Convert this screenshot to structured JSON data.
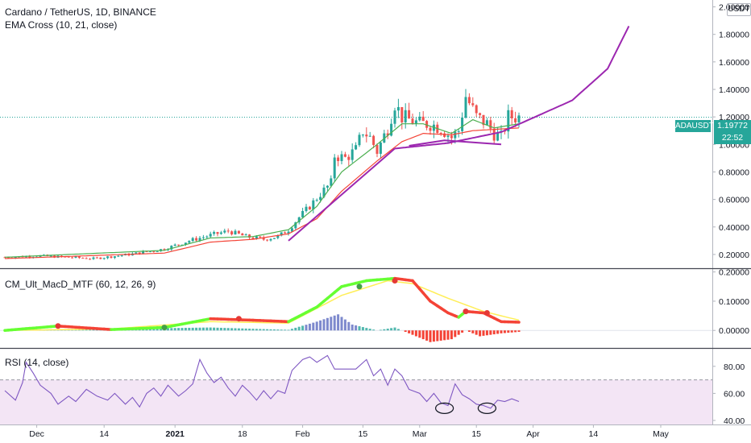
{
  "header": {
    "title": "Cardano / TetherUS, 1D, BINANCE",
    "ema_label": "EMA Cross (10, 21, close)",
    "currency_badge": "USDT"
  },
  "price_tag": {
    "symbol": "ADAUSDT",
    "price": "1.19772",
    "countdown": "22:52"
  },
  "macd_panel": {
    "label": "CM_Ult_MacD_MTF (60, 12, 26, 9)"
  },
  "rsi_panel": {
    "label": "RSI (14, close)"
  },
  "colors": {
    "up": "#26a69a",
    "down": "#ef5350",
    "ema_fast": "#4caf50",
    "ema_slow": "#f44336",
    "trend": "#9c27b0",
    "macd_up": "#66ff33",
    "macd_down": "#f44336",
    "signal": "#ffee58",
    "rsi_line": "#7e57c2",
    "rsi_band": "#f3e5f5"
  },
  "chart_data": [
    {
      "type": "candlestick",
      "title": "Cardano / TetherUS, 1D, BINANCE",
      "y_axis_labels": [
        "2.00000",
        "1.80000",
        "1.60000",
        "1.40000",
        "1.20000",
        "1.00000",
        "0.80000",
        "0.60000",
        "0.40000",
        "0.20000"
      ],
      "x_axis_labels": [
        "Dec",
        "14",
        "2021",
        "18",
        "Feb",
        "15",
        "Mar",
        "15",
        "Apr",
        "14",
        "May"
      ],
      "ylim": [
        0.1,
        2.05
      ],
      "last_price": 1.19772,
      "close_anchors": [
        [
          0,
          0.18
        ],
        [
          10,
          0.19
        ],
        [
          25,
          0.17
        ],
        [
          35,
          0.2
        ],
        [
          45,
          0.24
        ],
        [
          52,
          0.3
        ],
        [
          58,
          0.34
        ],
        [
          63,
          0.37
        ],
        [
          68,
          0.33
        ],
        [
          73,
          0.31
        ],
        [
          77,
          0.33
        ],
        [
          80,
          0.38
        ],
        [
          83,
          0.47
        ],
        [
          86,
          0.55
        ],
        [
          89,
          0.64
        ],
        [
          92,
          0.72
        ],
        [
          93,
          0.92
        ],
        [
          96,
          0.9
        ],
        [
          99,
          0.96
        ],
        [
          101,
          1.1
        ],
        [
          103,
          1.05
        ],
        [
          105,
          0.95
        ],
        [
          108,
          1.12
        ],
        [
          110,
          1.3
        ],
        [
          112,
          1.2
        ],
        [
          114,
          1.18
        ],
        [
          117,
          1.15
        ],
        [
          120,
          1.15
        ],
        [
          123,
          1.12
        ],
        [
          126,
          1.05
        ],
        [
          128,
          1.1
        ],
        [
          130,
          1.35
        ],
        [
          133,
          1.2
        ],
        [
          136,
          1.15
        ],
        [
          138,
          1.08
        ],
        [
          140,
          1.05
        ],
        [
          142,
          1.2
        ],
        [
          145,
          1.2
        ]
      ],
      "ema_fast_anchors": [
        [
          0,
          0.18
        ],
        [
          45,
          0.23
        ],
        [
          58,
          0.32
        ],
        [
          70,
          0.33
        ],
        [
          80,
          0.38
        ],
        [
          88,
          0.55
        ],
        [
          95,
          0.8
        ],
        [
          105,
          1.0
        ],
        [
          112,
          1.15
        ],
        [
          118,
          1.15
        ],
        [
          126,
          1.08
        ],
        [
          132,
          1.18
        ],
        [
          138,
          1.12
        ],
        [
          145,
          1.15
        ]
      ],
      "ema_slow_anchors": [
        [
          0,
          0.17
        ],
        [
          45,
          0.21
        ],
        [
          58,
          0.29
        ],
        [
          70,
          0.31
        ],
        [
          80,
          0.35
        ],
        [
          88,
          0.46
        ],
        [
          95,
          0.66
        ],
        [
          105,
          0.88
        ],
        [
          112,
          1.02
        ],
        [
          118,
          1.08
        ],
        [
          126,
          1.07
        ],
        [
          132,
          1.1
        ],
        [
          145,
          1.12
        ]
      ],
      "trendline_straight": [
        [
          80,
          0.3
        ],
        [
          110,
          0.97
        ]
      ],
      "trendline_curve": [
        [
          110,
          0.97
        ],
        [
          125,
          1.01
        ],
        [
          140,
          1.09
        ],
        [
          160,
          1.32
        ],
        [
          170,
          1.55
        ],
        [
          176,
          1.86
        ]
      ],
      "support_line": [
        [
          114,
          0.99
        ],
        [
          124,
          1.03
        ],
        [
          140,
          1.0
        ]
      ]
    },
    {
      "type": "line",
      "title": "CM_Ult_MacD_MTF (60, 12, 26, 9)",
      "y_axis_labels": [
        "0.20000",
        "0.10000",
        "0.00000"
      ],
      "ylim": [
        -0.06,
        0.21
      ],
      "macd_anchors": [
        [
          0,
          0.0
        ],
        [
          15,
          0.015
        ],
        [
          30,
          0.003
        ],
        [
          45,
          0.01
        ],
        [
          58,
          0.04
        ],
        [
          70,
          0.035
        ],
        [
          80,
          0.03
        ],
        [
          88,
          0.08
        ],
        [
          95,
          0.15
        ],
        [
          102,
          0.17
        ],
        [
          110,
          0.178
        ],
        [
          115,
          0.17
        ],
        [
          120,
          0.1
        ],
        [
          125,
          0.06
        ],
        [
          128,
          0.045
        ],
        [
          130,
          0.065
        ],
        [
          135,
          0.06
        ],
        [
          140,
          0.03
        ],
        [
          145,
          0.028
        ]
      ],
      "signal_anchors": [
        [
          0,
          0.0
        ],
        [
          30,
          0.005
        ],
        [
          58,
          0.03
        ],
        [
          80,
          0.025
        ],
        [
          95,
          0.12
        ],
        [
          108,
          0.17
        ],
        [
          115,
          0.16
        ],
        [
          125,
          0.11
        ],
        [
          135,
          0.065
        ],
        [
          145,
          0.035
        ]
      ],
      "histogram_anchors": [
        [
          0,
          0.0
        ],
        [
          58,
          0.01
        ],
        [
          80,
          0.002
        ],
        [
          88,
          0.03
        ],
        [
          94,
          0.055
        ],
        [
          98,
          0.02
        ],
        [
          105,
          0.0
        ],
        [
          110,
          0.01
        ],
        [
          114,
          -0.01
        ],
        [
          120,
          -0.04
        ],
        [
          126,
          -0.03
        ],
        [
          130,
          0.0
        ],
        [
          134,
          -0.02
        ],
        [
          140,
          -0.01
        ],
        [
          145,
          -0.005
        ]
      ],
      "cross_markers": [
        [
          15,
          0.015
        ],
        [
          45,
          0.01
        ],
        [
          66,
          0.04
        ],
        [
          100,
          0.15
        ],
        [
          110,
          0.17
        ],
        [
          130,
          0.065
        ],
        [
          136,
          0.06
        ]
      ]
    },
    {
      "type": "line",
      "title": "RSI (14, close)",
      "y_axis_labels": [
        "80.00",
        "60.00",
        "40.00"
      ],
      "ylim": [
        37,
        93
      ],
      "band": [
        30,
        70
      ],
      "rsi_anchors": [
        [
          0,
          62
        ],
        [
          3,
          55
        ],
        [
          5,
          68
        ],
        [
          6,
          83
        ],
        [
          8,
          75
        ],
        [
          10,
          66
        ],
        [
          13,
          60
        ],
        [
          15,
          52
        ],
        [
          18,
          58
        ],
        [
          20,
          54
        ],
        [
          23,
          63
        ],
        [
          26,
          58
        ],
        [
          29,
          55
        ],
        [
          31,
          60
        ],
        [
          34,
          52
        ],
        [
          36,
          57
        ],
        [
          38,
          50
        ],
        [
          40,
          60
        ],
        [
          42,
          64
        ],
        [
          44,
          58
        ],
        [
          46,
          66
        ],
        [
          49,
          58
        ],
        [
          51,
          62
        ],
        [
          53,
          67
        ],
        [
          55,
          85
        ],
        [
          57,
          75
        ],
        [
          59,
          68
        ],
        [
          61,
          72
        ],
        [
          63,
          64
        ],
        [
          65,
          58
        ],
        [
          67,
          66
        ],
        [
          69,
          61
        ],
        [
          71,
          55
        ],
        [
          73,
          62
        ],
        [
          75,
          56
        ],
        [
          77,
          62
        ],
        [
          79,
          60
        ],
        [
          81,
          77
        ],
        [
          84,
          85
        ],
        [
          86,
          87
        ],
        [
          88,
          83
        ],
        [
          91,
          88
        ],
        [
          93,
          78
        ],
        [
          96,
          78
        ],
        [
          99,
          78
        ],
        [
          102,
          85
        ],
        [
          104,
          73
        ],
        [
          106,
          78
        ],
        [
          108,
          66
        ],
        [
          110,
          78
        ],
        [
          112,
          73
        ],
        [
          114,
          63
        ],
        [
          117,
          60
        ],
        [
          119,
          54
        ],
        [
          121,
          60
        ],
        [
          123,
          53
        ],
        [
          125,
          51
        ],
        [
          127,
          67
        ],
        [
          129,
          59
        ],
        [
          131,
          56
        ],
        [
          133,
          52
        ],
        [
          135,
          51
        ],
        [
          137,
          49
        ],
        [
          139,
          55
        ],
        [
          141,
          54
        ],
        [
          143,
          56
        ],
        [
          145,
          54
        ]
      ],
      "annotation_circles": [
        [
          124,
          49
        ],
        [
          136,
          49
        ]
      ]
    }
  ]
}
